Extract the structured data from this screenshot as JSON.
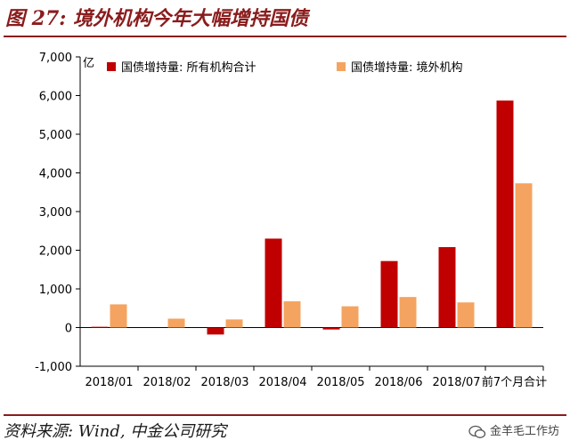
{
  "figure": {
    "title": "图 27: 境外机构今年大幅增持国债",
    "source": "资料来源: Wind, 中金公司研究",
    "watermark": "金羊毛工作坊"
  },
  "colors": {
    "series1": "#c00000",
    "series2": "#f4a460",
    "accent": "#8a1c1c"
  },
  "chart_data": {
    "type": "bar",
    "categories": [
      "2018/01",
      "2018/02",
      "2018/03",
      "2018/04",
      "2018/05",
      "2018/06",
      "2018/07",
      "前7个月合计"
    ],
    "series": [
      {
        "name": "国债增持量: 所有机构合计",
        "values": [
          20,
          0,
          -180,
          2300,
          -50,
          1720,
          2080,
          5870
        ]
      },
      {
        "name": "国债增持量: 境外机构",
        "values": [
          600,
          230,
          210,
          680,
          550,
          790,
          650,
          3730
        ]
      }
    ],
    "ylabel": "亿",
    "ylim": [
      -1000,
      7000
    ],
    "yticks": [
      "7,000",
      "6,000",
      "5,000",
      "4,000",
      "3,000",
      "2,000",
      "1,000",
      "0",
      "-1,000"
    ],
    "grid": false,
    "legend": "top"
  }
}
